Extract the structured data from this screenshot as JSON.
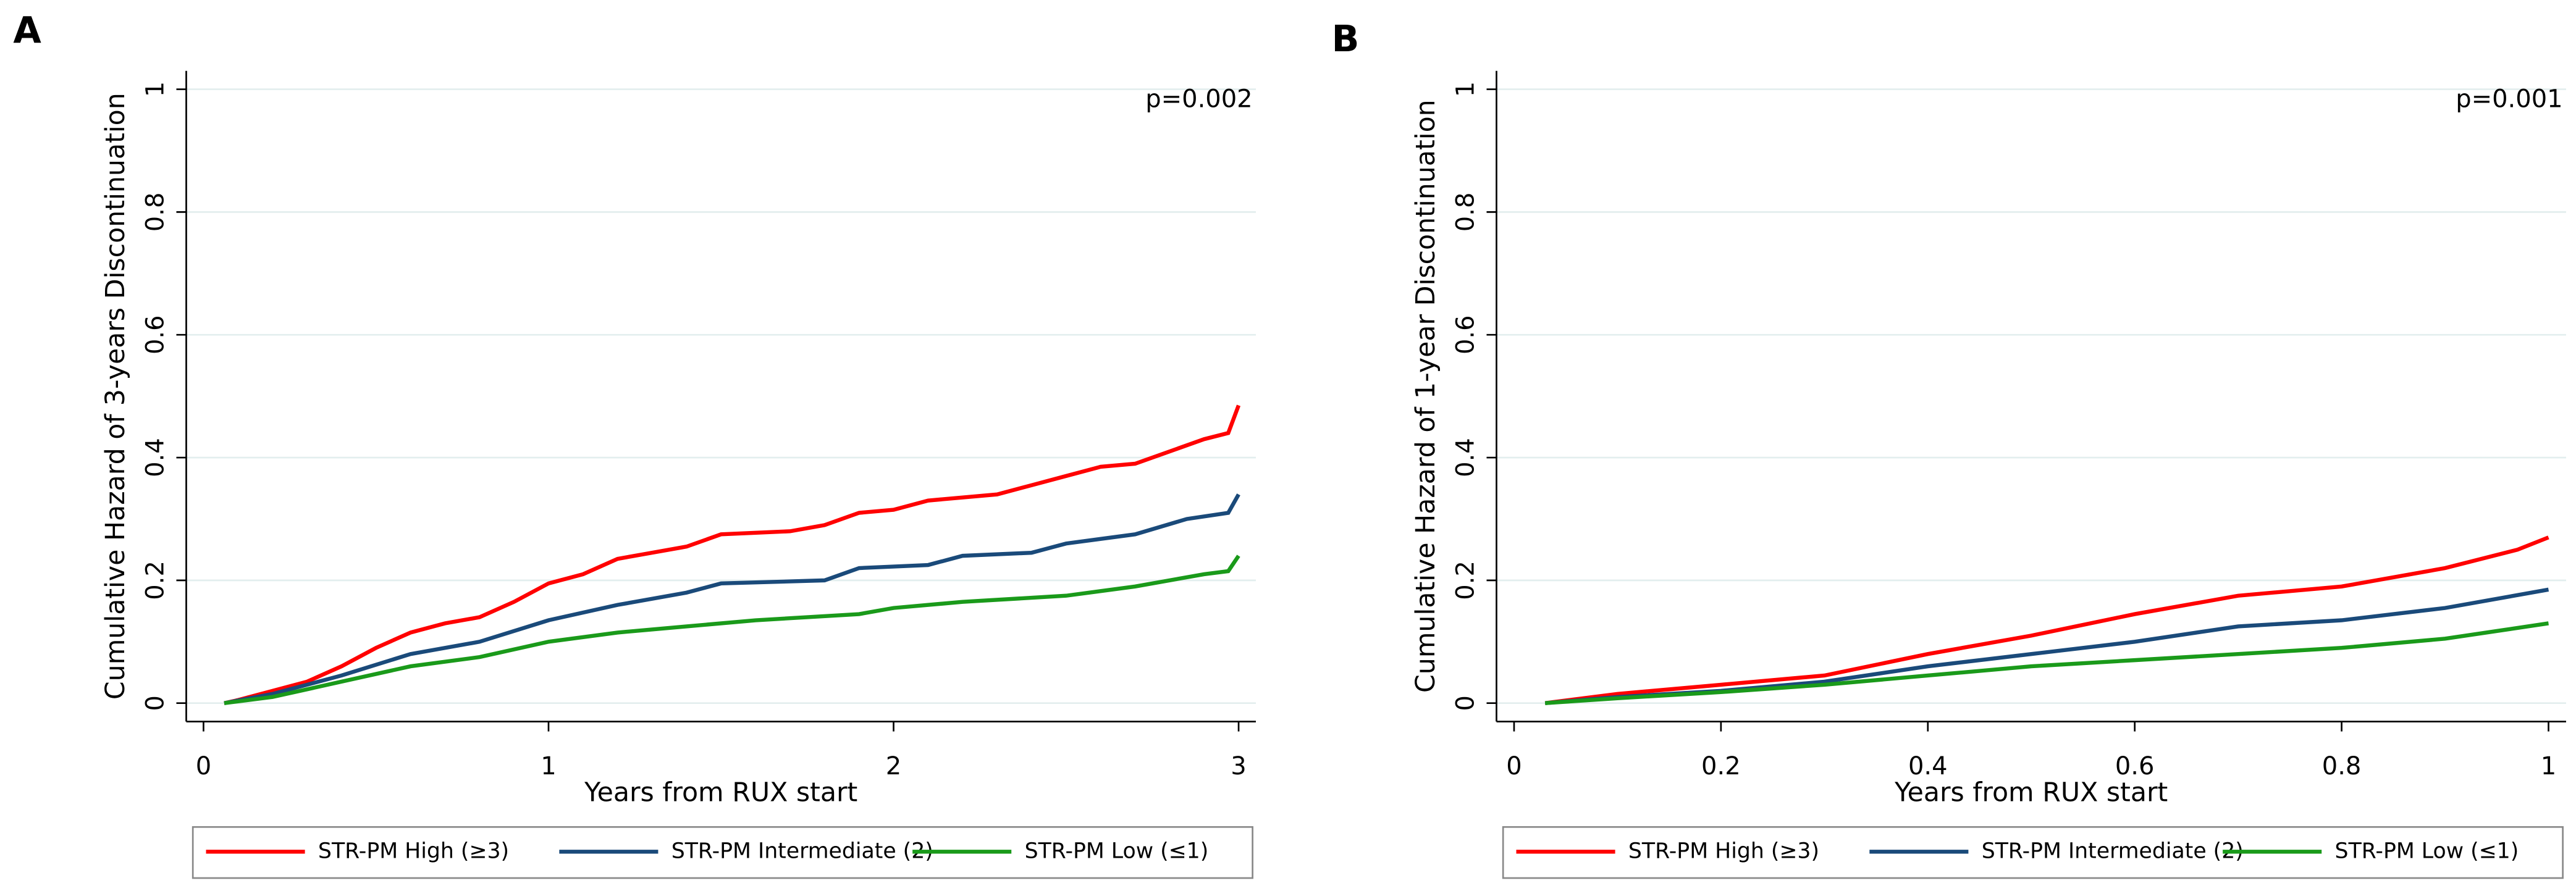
{
  "chart_data": [
    {
      "type": "line",
      "panel": "A",
      "annotation": "p=0.002",
      "y_label": "Cumulative Hazard of 3-years Discontinuation",
      "x_label": "Years from RUX start",
      "xlim": [
        -0.05,
        3.05
      ],
      "xticks": [
        0,
        1,
        2,
        3
      ],
      "ylim": [
        -0.03,
        1.03
      ],
      "yticks": [
        0,
        0.2,
        0.4,
        0.6,
        0.8,
        1
      ],
      "grid": true,
      "series": [
        {
          "name": "STR-PM High (≥3)",
          "color": "#ff0000",
          "x": [
            0.06,
            0.1,
            0.2,
            0.3,
            0.4,
            0.5,
            0.6,
            0.7,
            0.8,
            0.9,
            1.0,
            1.1,
            1.2,
            1.3,
            1.4,
            1.5,
            1.7,
            1.8,
            1.9,
            2.0,
            2.1,
            2.3,
            2.4,
            2.5,
            2.6,
            2.7,
            2.8,
            2.9,
            2.97,
            3.0
          ],
          "values": [
            0,
            0.005,
            0.02,
            0.035,
            0.06,
            0.09,
            0.115,
            0.13,
            0.14,
            0.165,
            0.195,
            0.21,
            0.235,
            0.245,
            0.255,
            0.275,
            0.28,
            0.29,
            0.31,
            0.315,
            0.33,
            0.34,
            0.355,
            0.37,
            0.385,
            0.39,
            0.41,
            0.43,
            0.44,
            0.485
          ]
        },
        {
          "name": "STR-PM Intermediate (2)",
          "color": "#1a4a7a",
          "x": [
            0.06,
            0.2,
            0.4,
            0.6,
            0.8,
            1.0,
            1.2,
            1.4,
            1.5,
            1.8,
            1.9,
            2.1,
            2.2,
            2.4,
            2.5,
            2.7,
            2.85,
            2.97,
            3.0
          ],
          "values": [
            0,
            0.015,
            0.045,
            0.08,
            0.1,
            0.135,
            0.16,
            0.18,
            0.195,
            0.2,
            0.22,
            0.225,
            0.24,
            0.245,
            0.26,
            0.275,
            0.3,
            0.31,
            0.34
          ]
        },
        {
          "name": "STR-PM Low (≤1)",
          "color": "#1a9a1a",
          "x": [
            0.06,
            0.2,
            0.4,
            0.6,
            0.8,
            1.0,
            1.2,
            1.4,
            1.6,
            1.9,
            2.0,
            2.2,
            2.5,
            2.7,
            2.9,
            2.97,
            3.0
          ],
          "values": [
            0,
            0.01,
            0.035,
            0.06,
            0.075,
            0.1,
            0.115,
            0.125,
            0.135,
            0.145,
            0.155,
            0.165,
            0.175,
            0.19,
            0.21,
            0.215,
            0.24
          ]
        }
      ]
    },
    {
      "type": "line",
      "panel": "B",
      "annotation": "p=0.001",
      "y_label": "Cumulative Hazard of 1-year Discontinuation",
      "x_label": "Years from RUX start",
      "xlim": [
        -0.017,
        1.017
      ],
      "xticks": [
        0,
        0.2,
        0.4,
        0.6,
        0.8,
        1
      ],
      "ylim": [
        -0.03,
        1.03
      ],
      "yticks": [
        0,
        0.2,
        0.4,
        0.6,
        0.8,
        1
      ],
      "grid": true,
      "series": [
        {
          "name": "STR-PM High (≥3)",
          "color": "#ff0000",
          "x": [
            0.03,
            0.1,
            0.2,
            0.3,
            0.4,
            0.5,
            0.6,
            0.7,
            0.8,
            0.9,
            0.97,
            1.0
          ],
          "values": [
            0,
            0.015,
            0.03,
            0.045,
            0.08,
            0.11,
            0.145,
            0.175,
            0.19,
            0.22,
            0.25,
            0.27
          ]
        },
        {
          "name": "STR-PM Intermediate (2)",
          "color": "#1a4a7a",
          "x": [
            0.03,
            0.1,
            0.2,
            0.3,
            0.4,
            0.5,
            0.6,
            0.7,
            0.8,
            0.9,
            1.0
          ],
          "values": [
            0,
            0.01,
            0.02,
            0.035,
            0.06,
            0.08,
            0.1,
            0.125,
            0.135,
            0.155,
            0.185
          ]
        },
        {
          "name": "STR-PM Low (≤1)",
          "color": "#1a9a1a",
          "x": [
            0.03,
            0.1,
            0.2,
            0.3,
            0.4,
            0.5,
            0.6,
            0.7,
            0.8,
            0.9,
            1.0
          ],
          "values": [
            0,
            0.008,
            0.018,
            0.03,
            0.045,
            0.06,
            0.07,
            0.08,
            0.09,
            0.105,
            0.13
          ]
        }
      ]
    }
  ]
}
